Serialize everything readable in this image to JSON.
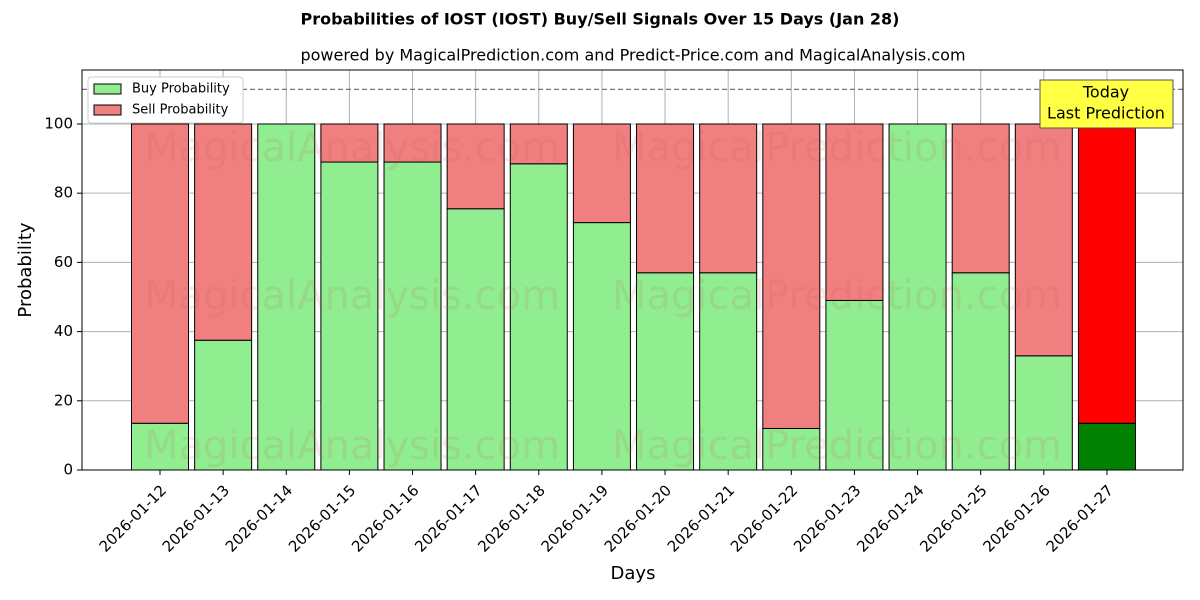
{
  "chart_data": {
    "type": "stacked_bar",
    "title": "Probabilities of IOST (IOST) Buy/Sell Signals Over 15 Days (Jan 28)",
    "subtitle": "powered by MagicalPrediction.com and Predict-Price.com and MagicalAnalysis.com",
    "x_label": "Days",
    "y_label": "Probability",
    "categories": [
      "2026-01-12",
      "2026-01-13",
      "2026-01-14",
      "2026-01-15",
      "2026-01-16",
      "2026-01-17",
      "2026-01-18",
      "2026-01-19",
      "2026-01-20",
      "2026-01-21",
      "2026-01-22",
      "2026-01-23",
      "2026-01-24",
      "2026-01-25",
      "2026-01-26",
      "2026-01-27"
    ],
    "series": [
      {
        "name": "Buy Probability",
        "color": "#90ee90",
        "colors": [
          "#90ee90",
          "#90ee90",
          "#90ee90",
          "#90ee90",
          "#90ee90",
          "#90ee90",
          "#90ee90",
          "#90ee90",
          "#90ee90",
          "#90ee90",
          "#90ee90",
          "#90ee90",
          "#90ee90",
          "#90ee90",
          "#90ee90",
          "#008000"
        ],
        "values": [
          13.5,
          37.5,
          100,
          89,
          89,
          75.5,
          88.5,
          71.5,
          57,
          57,
          12,
          49,
          100,
          57,
          33,
          13.5
        ]
      },
      {
        "name": "Sell Probability",
        "color": "#f08080",
        "colors": [
          "#f08080",
          "#f08080",
          "#f08080",
          "#f08080",
          "#f08080",
          "#f08080",
          "#f08080",
          "#f08080",
          "#f08080",
          "#f08080",
          "#f08080",
          "#f08080",
          "#f08080",
          "#f08080",
          "#f08080",
          "#ff0000"
        ],
        "values": [
          86.5,
          62.5,
          0,
          11,
          11,
          24.5,
          11.5,
          28.5,
          43,
          43,
          88,
          51,
          0,
          43,
          67,
          86.5
        ]
      }
    ],
    "ylim": [
      0,
      115.6
    ],
    "yticks": [
      0,
      20,
      40,
      60,
      80,
      100
    ],
    "grid": true,
    "hline": 110,
    "legend": "upper left",
    "annotation": [
      "Today",
      "Last Prediction"
    ],
    "watermarks": [
      "MagicalAnalysis.com",
      "MagicalPrediction.com"
    ]
  }
}
